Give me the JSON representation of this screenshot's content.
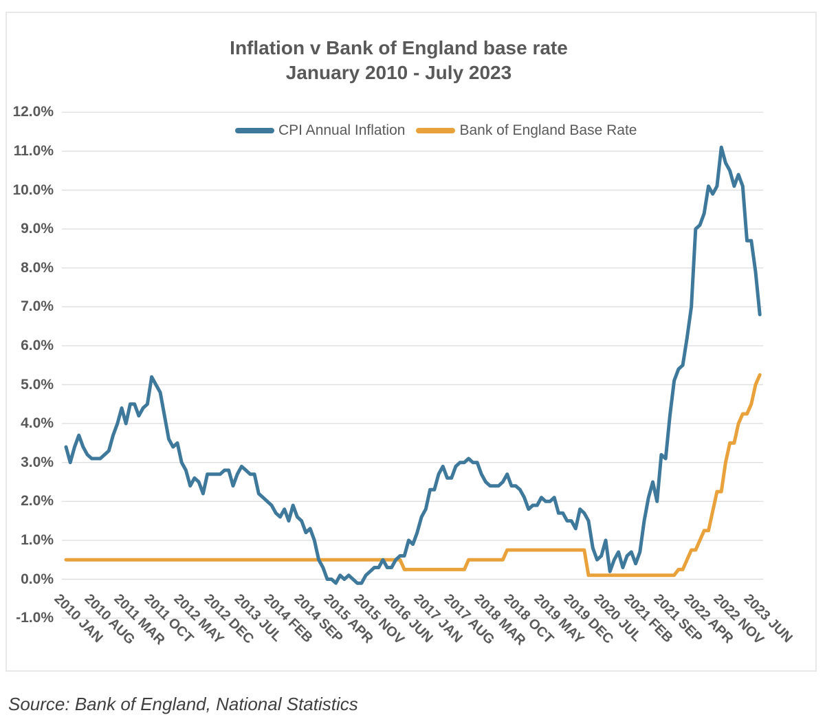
{
  "title": {
    "line1": "Inflation v Bank of England base rate",
    "line2": "January 2010 - July 2023"
  },
  "source": "Source: Bank of England, National Statistics",
  "colors": {
    "cpi_line": "#3E799B",
    "base_rate_line": "#E9A23B",
    "text_gray": "#595959",
    "gridline": "#DFDFDF"
  },
  "legend": [
    {
      "label": "CPI Annual Inflation",
      "color": "#3E799B"
    },
    {
      "label": "Bank of England Base Rate",
      "color": "#E9A23B"
    }
  ],
  "chart_data": {
    "type": "line",
    "x_start_month": "2010-01",
    "x_end_month": "2023-07",
    "x_frequency": "monthly",
    "x_tick_every_months": 7,
    "x_tick_labels": [
      "2010 JAN",
      "2010 AUG",
      "2011 MAR",
      "2011 OCT",
      "2012 MAY",
      "2012 DEC",
      "2013 JUL",
      "2014 FEB",
      "2014 SEP",
      "2015 APR",
      "2015 NOV",
      "2016 JUN",
      "2017 JAN",
      "2017 AUG",
      "2018 MAR",
      "2018 OCT",
      "2019 MAY",
      "2019 DEC",
      "2020 JUL",
      "2021 FEB",
      "2021 SEP",
      "2022 APR",
      "2022 NOV",
      "2023 JUN"
    ],
    "y_axis": {
      "min": -1.0,
      "max": 12.0,
      "step": 1.0,
      "format": "percent_one_decimal",
      "tick_labels": [
        "12.0%",
        "11.0%",
        "10.0%",
        "9.0%",
        "8.0%",
        "7.0%",
        "6.0%",
        "5.0%",
        "4.0%",
        "3.0%",
        "2.0%",
        "1.0%",
        "0.0%",
        "-1.0%"
      ]
    },
    "grid": "horizontal-only",
    "legend_position": "top-inside",
    "series": [
      {
        "id": "cpi",
        "name": "CPI Annual Inflation",
        "color": "#3E799B",
        "values": [
          3.4,
          3.0,
          3.4,
          3.7,
          3.4,
          3.2,
          3.1,
          3.1,
          3.1,
          3.2,
          3.3,
          3.7,
          4.0,
          4.4,
          4.0,
          4.5,
          4.5,
          4.2,
          4.4,
          4.5,
          5.2,
          5.0,
          4.8,
          4.2,
          3.6,
          3.4,
          3.5,
          3.0,
          2.8,
          2.4,
          2.6,
          2.5,
          2.2,
          2.7,
          2.7,
          2.7,
          2.7,
          2.8,
          2.8,
          2.4,
          2.7,
          2.9,
          2.8,
          2.7,
          2.7,
          2.2,
          2.1,
          2.0,
          1.9,
          1.7,
          1.6,
          1.8,
          1.5,
          1.9,
          1.6,
          1.5,
          1.2,
          1.3,
          1.0,
          0.5,
          0.3,
          0.0,
          0.0,
          -0.1,
          0.1,
          0.0,
          0.1,
          0.0,
          -0.1,
          -0.1,
          0.1,
          0.2,
          0.3,
          0.3,
          0.5,
          0.3,
          0.3,
          0.5,
          0.6,
          0.6,
          1.0,
          0.9,
          1.2,
          1.6,
          1.8,
          2.3,
          2.3,
          2.7,
          2.9,
          2.6,
          2.6,
          2.9,
          3.0,
          3.0,
          3.1,
          3.0,
          3.0,
          2.7,
          2.5,
          2.4,
          2.4,
          2.4,
          2.5,
          2.7,
          2.4,
          2.4,
          2.3,
          2.1,
          1.8,
          1.9,
          1.9,
          2.1,
          2.0,
          2.0,
          2.1,
          1.7,
          1.7,
          1.5,
          1.5,
          1.3,
          1.8,
          1.7,
          1.5,
          0.8,
          0.5,
          0.6,
          1.0,
          0.2,
          0.5,
          0.7,
          0.3,
          0.6,
          0.7,
          0.4,
          0.7,
          1.5,
          2.1,
          2.5,
          2.0,
          3.2,
          3.1,
          4.2,
          5.1,
          5.4,
          5.5,
          6.2,
          7.0,
          9.0,
          9.1,
          9.4,
          10.1,
          9.9,
          10.1,
          11.1,
          10.7,
          10.5,
          10.1,
          10.4,
          10.1,
          8.7,
          8.7,
          7.9,
          6.8
        ]
      },
      {
        "id": "base-rate",
        "name": "Bank of England Base Rate",
        "color": "#E9A23B",
        "values": [
          0.5,
          0.5,
          0.5,
          0.5,
          0.5,
          0.5,
          0.5,
          0.5,
          0.5,
          0.5,
          0.5,
          0.5,
          0.5,
          0.5,
          0.5,
          0.5,
          0.5,
          0.5,
          0.5,
          0.5,
          0.5,
          0.5,
          0.5,
          0.5,
          0.5,
          0.5,
          0.5,
          0.5,
          0.5,
          0.5,
          0.5,
          0.5,
          0.5,
          0.5,
          0.5,
          0.5,
          0.5,
          0.5,
          0.5,
          0.5,
          0.5,
          0.5,
          0.5,
          0.5,
          0.5,
          0.5,
          0.5,
          0.5,
          0.5,
          0.5,
          0.5,
          0.5,
          0.5,
          0.5,
          0.5,
          0.5,
          0.5,
          0.5,
          0.5,
          0.5,
          0.5,
          0.5,
          0.5,
          0.5,
          0.5,
          0.5,
          0.5,
          0.5,
          0.5,
          0.5,
          0.5,
          0.5,
          0.5,
          0.5,
          0.5,
          0.5,
          0.5,
          0.5,
          0.5,
          0.25,
          0.25,
          0.25,
          0.25,
          0.25,
          0.25,
          0.25,
          0.25,
          0.25,
          0.25,
          0.25,
          0.25,
          0.25,
          0.25,
          0.25,
          0.5,
          0.5,
          0.5,
          0.5,
          0.5,
          0.5,
          0.5,
          0.5,
          0.5,
          0.75,
          0.75,
          0.75,
          0.75,
          0.75,
          0.75,
          0.75,
          0.75,
          0.75,
          0.75,
          0.75,
          0.75,
          0.75,
          0.75,
          0.75,
          0.75,
          0.75,
          0.75,
          0.75,
          0.1,
          0.1,
          0.1,
          0.1,
          0.1,
          0.1,
          0.1,
          0.1,
          0.1,
          0.1,
          0.1,
          0.1,
          0.1,
          0.1,
          0.1,
          0.1,
          0.1,
          0.1,
          0.1,
          0.1,
          0.1,
          0.25,
          0.25,
          0.5,
          0.75,
          0.75,
          1.0,
          1.25,
          1.25,
          1.75,
          2.25,
          2.25,
          3.0,
          3.5,
          3.5,
          4.0,
          4.25,
          4.25,
          4.5,
          5.0,
          5.25
        ]
      }
    ]
  }
}
